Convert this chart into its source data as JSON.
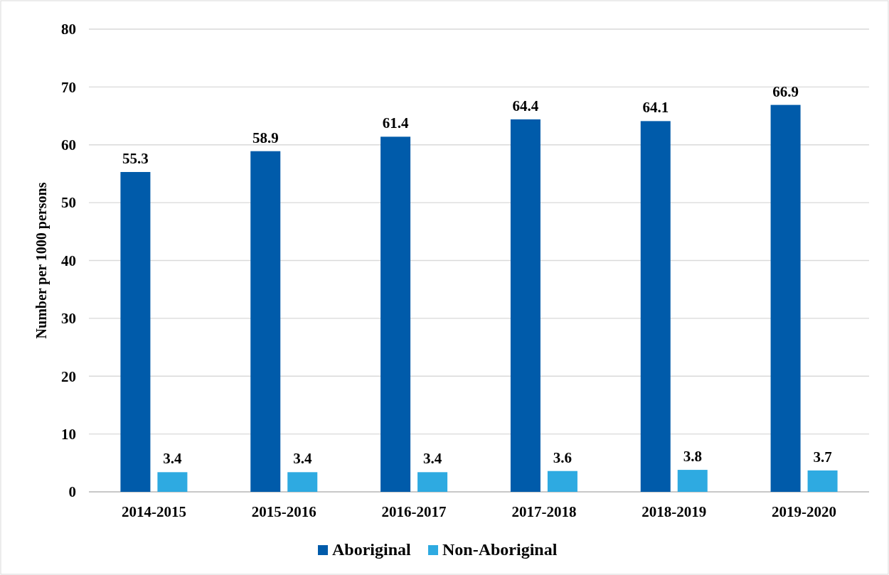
{
  "chart_data": {
    "type": "bar",
    "ylabel": "Number per 1000 persons",
    "categories": [
      "2014-2015",
      "2015-2016",
      "2016-2017",
      "2017-2018",
      "2018-2019",
      "2019-2020"
    ],
    "series": [
      {
        "name": "Aboriginal",
        "color": "#005baa",
        "values": [
          55.3,
          58.9,
          61.4,
          64.4,
          64.1,
          66.9
        ]
      },
      {
        "name": "Non-Aboriginal",
        "color": "#2eaae1",
        "values": [
          3.4,
          3.4,
          3.4,
          3.6,
          3.8,
          3.7
        ]
      }
    ],
    "ylim": [
      0,
      80
    ],
    "yticks": [
      0,
      10,
      20,
      30,
      40,
      50,
      60,
      70,
      80
    ],
    "grid": "y",
    "legend": "bottom",
    "data_labels": true
  }
}
